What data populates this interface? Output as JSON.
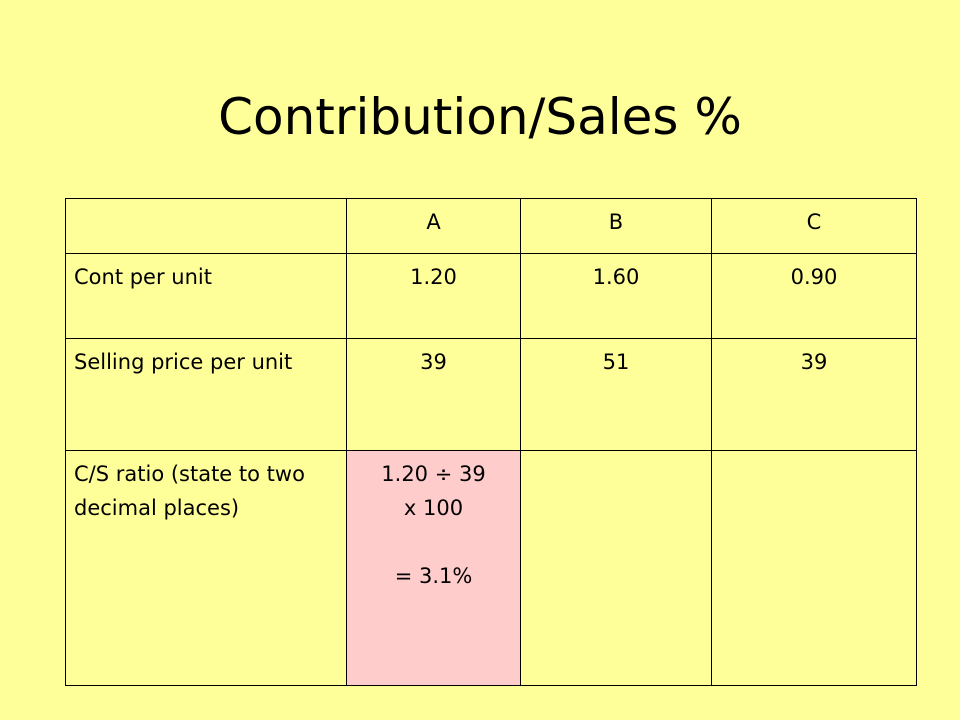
{
  "title": "Contribution/Sales %",
  "table": {
    "header": [
      "A",
      "B",
      "C"
    ],
    "rows": [
      {
        "label": "Cont per unit",
        "cells": [
          "1.20",
          "1.60",
          "0.90"
        ]
      },
      {
        "label": "Selling price per unit",
        "cells": [
          "39",
          "51",
          "39"
        ]
      },
      {
        "label": "C/S ratio (state to two decimal places)",
        "working": [
          "1.20 ÷ 39",
          "x 100",
          "= 3.1%"
        ]
      }
    ]
  }
}
